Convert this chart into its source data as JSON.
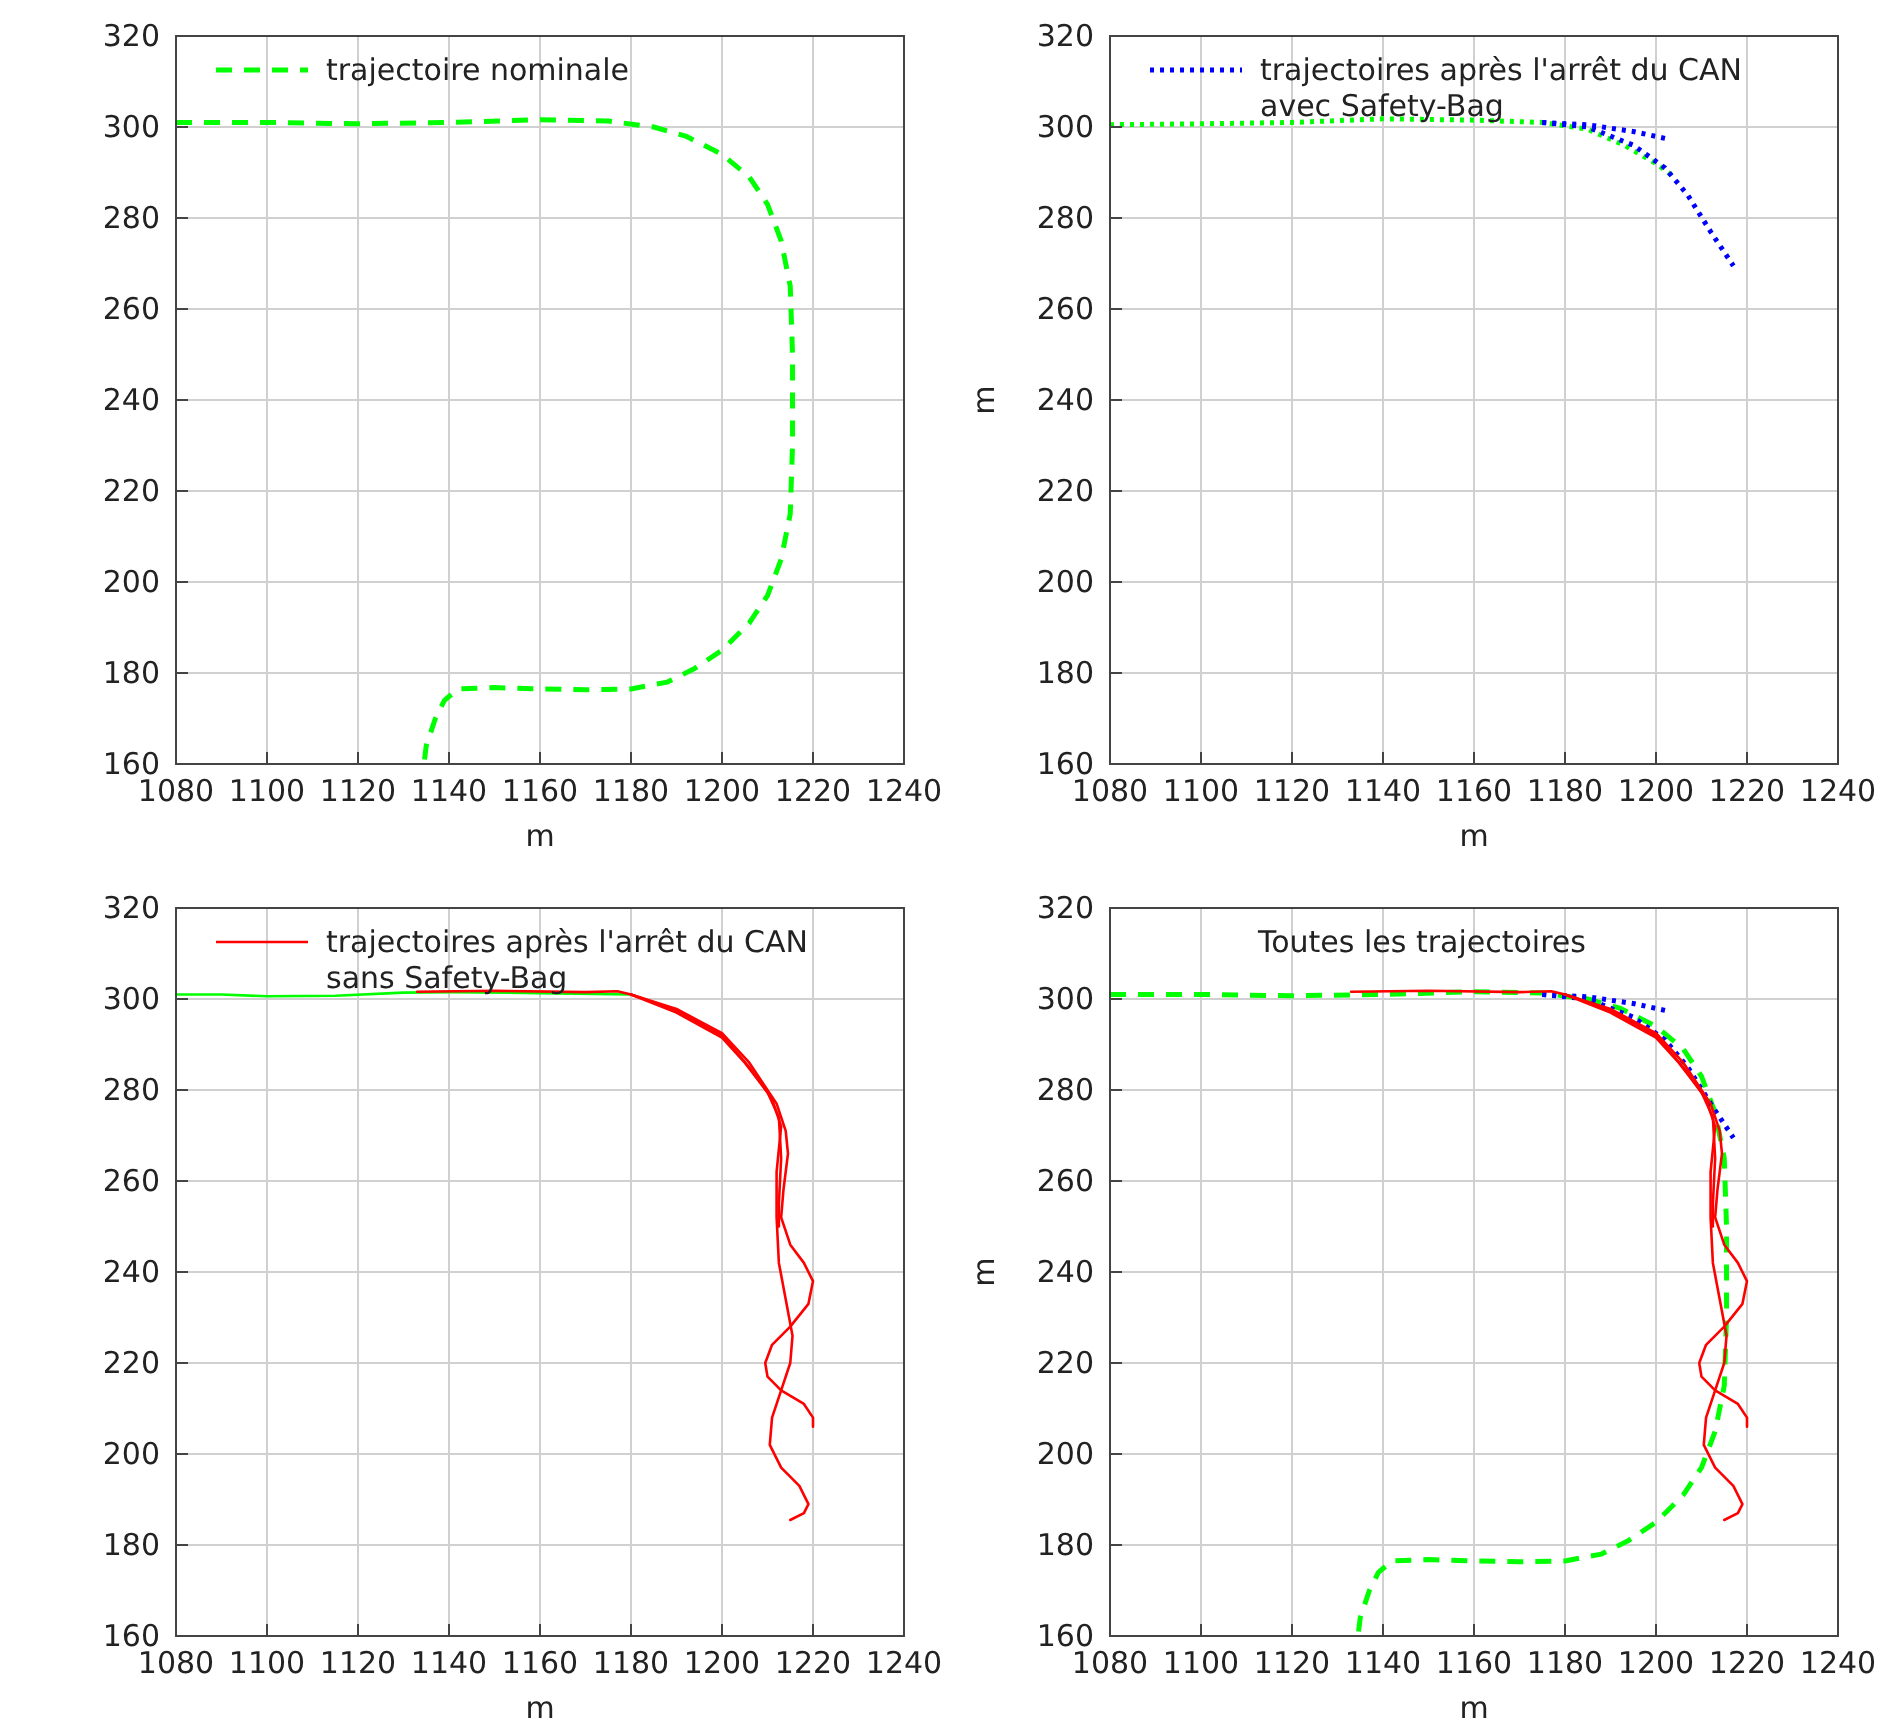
{
  "chart_data": [
    {
      "type": "line",
      "xlabel": "m",
      "xlim": [
        1080,
        1240
      ],
      "ylim": [
        160,
        320
      ],
      "xticks": [
        1080,
        1100,
        1120,
        1140,
        1160,
        1180,
        1200,
        1220,
        1240
      ],
      "yticks": [
        160,
        180,
        200,
        220,
        240,
        260,
        280,
        300,
        320
      ],
      "grid": true,
      "legend": "top left",
      "marker": "none",
      "series": [
        {
          "name": "trajectoire nominale",
          "color": "#00ff00",
          "line_style": "dashed",
          "x": [
            1080,
            1100,
            1120,
            1140,
            1160,
            1175,
            1185,
            1192,
            1200,
            1206,
            1210,
            1213,
            1215,
            1215.5,
            1215.5,
            1215,
            1213,
            1210,
            1206,
            1200,
            1194,
            1188,
            1180,
            1170,
            1160,
            1150,
            1142,
            1139,
            1137,
            1135,
            1134.5
          ],
          "values": [
            301,
            301,
            300.7,
            301,
            301.6,
            301.3,
            300,
            298,
            294,
            289,
            283,
            275,
            265,
            250,
            230,
            215,
            205,
            197,
            191,
            185,
            181,
            178,
            176.5,
            176.3,
            176.5,
            176.8,
            176.5,
            174,
            170,
            164,
            160
          ]
        }
      ]
    },
    {
      "type": "line",
      "xlabel": "m",
      "ylabel": "m",
      "xlim": [
        1080,
        1240
      ],
      "ylim": [
        160,
        320
      ],
      "xticks": [
        1080,
        1100,
        1120,
        1140,
        1160,
        1180,
        1200,
        1220,
        1240
      ],
      "yticks": [
        160,
        180,
        200,
        220,
        240,
        260,
        280,
        300,
        320
      ],
      "grid": true,
      "legend": "top left",
      "marker": "none",
      "series": [
        {
          "color": "#00ff00",
          "line_style": "dotted",
          "x": [
            1080,
            1100,
            1120,
            1140,
            1160,
            1175,
            1185,
            1193,
            1200,
            1204
          ],
          "values": [
            300.5,
            300.7,
            301,
            301.8,
            301.5,
            301,
            299.5,
            296,
            292,
            289
          ]
        },
        {
          "name": "trajectoires après l'arrêt du CAN avec Safety-Bag",
          "color": "#0000ff",
          "line_style": "dotted",
          "x": [
            1175,
            1185,
            1195,
            1202
          ],
          "values": [
            301,
            300.5,
            299,
            297.5
          ]
        },
        {
          "color": "#0000ff",
          "line_style": "dotted",
          "x": [
            1175,
            1185,
            1195,
            1202,
            1207,
            1212,
            1217
          ],
          "values": [
            301,
            300,
            296,
            291,
            285,
            277,
            269.5
          ]
        }
      ]
    },
    {
      "type": "line",
      "xlabel": "m",
      "xlim": [
        1080,
        1240
      ],
      "ylim": [
        160,
        320
      ],
      "xticks": [
        1080,
        1100,
        1120,
        1140,
        1160,
        1180,
        1200,
        1220,
        1240
      ],
      "yticks": [
        160,
        180,
        200,
        220,
        240,
        260,
        280,
        300,
        320
      ],
      "grid": true,
      "legend": "top left",
      "marker": "none",
      "series": [
        {
          "color": "#00ff00",
          "line_style": "solid",
          "x": [
            1080,
            1090,
            1100,
            1115,
            1130,
            1140,
            1160,
            1180
          ],
          "values": [
            301,
            301,
            300.6,
            300.7,
            301.4,
            301.5,
            301.3,
            301
          ]
        },
        {
          "name": "trajectoires après l'arrêt du CAN sans Safety-Bag",
          "color": "#ff0000",
          "line_style": "solid",
          "x": [
            1133,
            1150,
            1170,
            1177,
            1180,
            1190,
            1200,
            1206,
            1212,
            1214,
            1214.5,
            1213.5,
            1213,
            1215,
            1218,
            1220,
            1219,
            1215,
            1211,
            1209.5,
            1210,
            1213,
            1218,
            1220,
            1220
          ],
          "values": [
            301.6,
            301.8,
            301.5,
            301.7,
            301,
            297.8,
            292.5,
            286,
            277,
            271,
            266,
            258,
            252,
            246,
            242,
            238,
            233,
            228,
            224,
            220,
            217,
            214,
            211,
            208,
            206
          ]
        },
        {
          "color": "#ff0000",
          "line_style": "solid",
          "x": [
            1180,
            1190,
            1200,
            1206,
            1211,
            1213,
            1212,
            1212,
            1212.5,
            1214,
            1215.5,
            1215,
            1213,
            1211,
            1210.5,
            1213,
            1217,
            1219,
            1218,
            1215
          ],
          "values": [
            301,
            297.5,
            292,
            285,
            278,
            272,
            262,
            252,
            242,
            234,
            226,
            220,
            214,
            208,
            202,
            197,
            193,
            189,
            187,
            185.5
          ]
        },
        {
          "color": "#ff0000",
          "line_style": "solid",
          "x": [
            1180,
            1190,
            1200,
            1205,
            1210,
            1212.5,
            1213,
            1212.5,
            1212.5
          ],
          "values": [
            301,
            297,
            291.5,
            286,
            279.5,
            274,
            265,
            255,
            250
          ]
        }
      ]
    },
    {
      "type": "line",
      "title": "Toutes les trajectoires",
      "xlabel": "m",
      "ylabel": "m",
      "xlim": [
        1080,
        1240
      ],
      "ylim": [
        160,
        320
      ],
      "xticks": [
        1080,
        1100,
        1120,
        1140,
        1160,
        1180,
        1200,
        1220,
        1240
      ],
      "yticks": [
        160,
        180,
        200,
        220,
        240,
        260,
        280,
        300,
        320
      ],
      "grid": true,
      "marker": "none",
      "series": [
        {
          "color": "#00ff00",
          "line_style": "dashed",
          "x": [
            1080,
            1100,
            1120,
            1140,
            1160,
            1175,
            1185,
            1192,
            1200,
            1206,
            1210,
            1213,
            1215,
            1215.5,
            1215.5,
            1215,
            1213,
            1210,
            1206,
            1200,
            1194,
            1188,
            1180,
            1170,
            1160,
            1150,
            1142,
            1139,
            1137,
            1135,
            1134.5
          ],
          "values": [
            301,
            301,
            300.7,
            301,
            301.6,
            301.3,
            300,
            298,
            294,
            289,
            283,
            275,
            265,
            250,
            230,
            215,
            205,
            197,
            191,
            185,
            181,
            178,
            176.5,
            176.3,
            176.5,
            176.8,
            176.5,
            174,
            170,
            164,
            160
          ]
        },
        {
          "color": "#0000ff",
          "line_style": "dotted",
          "x": [
            1175,
            1185,
            1195,
            1202
          ],
          "values": [
            301,
            300.5,
            299,
            297.5
          ]
        },
        {
          "color": "#0000ff",
          "line_style": "dotted",
          "x": [
            1175,
            1185,
            1195,
            1202,
            1207,
            1212,
            1217
          ],
          "values": [
            301,
            300,
            296,
            291,
            285,
            277,
            269.5
          ]
        },
        {
          "color": "#ff0000",
          "line_style": "solid",
          "x": [
            1133,
            1150,
            1170,
            1177,
            1180,
            1190,
            1200,
            1206,
            1212,
            1214,
            1214.5,
            1213.5,
            1213,
            1215,
            1218,
            1220,
            1219,
            1215,
            1211,
            1209.5,
            1210,
            1213,
            1218,
            1220,
            1220
          ],
          "values": [
            301.6,
            301.8,
            301.5,
            301.7,
            301,
            297.8,
            292.5,
            286,
            277,
            271,
            266,
            258,
            252,
            246,
            242,
            238,
            233,
            228,
            224,
            220,
            217,
            214,
            211,
            208,
            206
          ]
        },
        {
          "color": "#ff0000",
          "line_style": "solid",
          "x": [
            1180,
            1190,
            1200,
            1206,
            1211,
            1213,
            1212,
            1212,
            1212.5,
            1214,
            1215.5,
            1215,
            1213,
            1211,
            1210.5,
            1213,
            1217,
            1219,
            1218,
            1215
          ],
          "values": [
            301,
            297.5,
            292,
            285,
            278,
            272,
            262,
            252,
            242,
            234,
            226,
            220,
            214,
            208,
            202,
            197,
            193,
            189,
            187,
            185.5
          ]
        },
        {
          "color": "#ff0000",
          "line_style": "solid",
          "x": [
            1180,
            1190,
            1200,
            1205,
            1210,
            1212.5,
            1213,
            1212.5,
            1212.5
          ],
          "values": [
            301,
            297,
            291.5,
            286,
            279.5,
            274,
            265,
            255,
            250
          ]
        }
      ]
    }
  ]
}
